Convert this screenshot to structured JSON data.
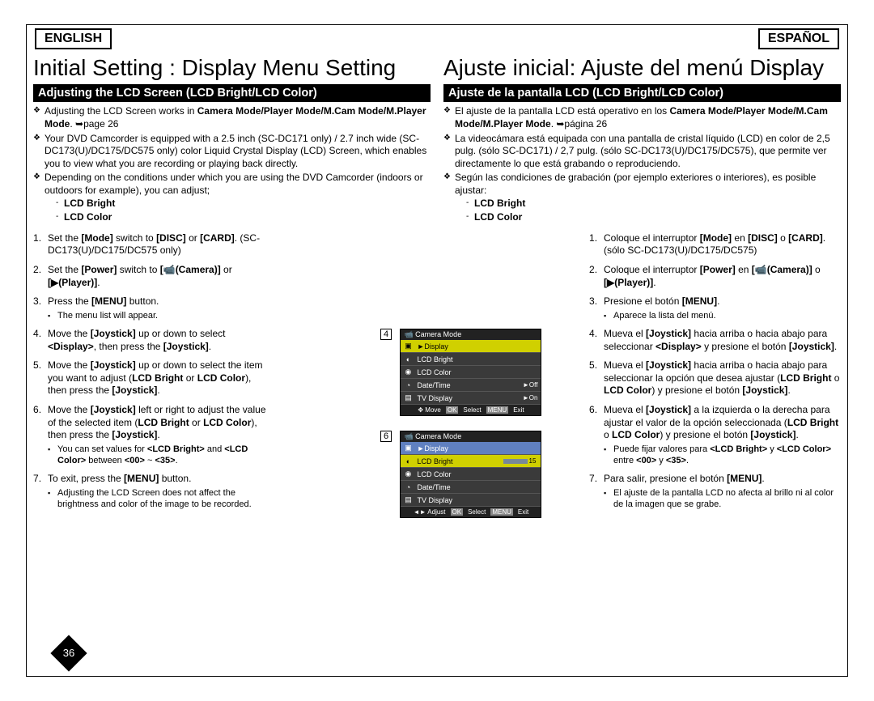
{
  "lang_left": "ENGLISH",
  "lang_right": "ESPAÑOL",
  "left": {
    "title": "Initial Setting : Display Menu Setting",
    "subhead": "Adjusting the LCD Screen (LCD Bright/LCD Color)",
    "b1a": "Adjusting the LCD Screen works in ",
    "b1b": "Camera Mode/Player Mode/M.Cam Mode/M.Player Mode",
    "b1c": ". ➥page 26",
    "b2": "Your DVD Camcorder is equipped with a 2.5 inch (SC-DC171 only) / 2.7 inch wide (SC-DC173(U)/DC175/DC575 only) color Liquid Crystal Display (LCD) Screen, which enables you to view what you are recording or playing back directly.",
    "b3": "Depending on the conditions under which you are using the DVD Camcorder (indoors or outdoors for example), you can adjust;",
    "sub1": "LCD Bright",
    "sub2": "LCD Color",
    "s1": "Set the <b>[Mode]</b> switch to <b>[DISC]</b> or <b>[CARD]</b>. (SC-DC173(U)/DC175/DC575 only)",
    "s2": "Set the <b>[Power]</b> switch to <b>[📹(Camera)]</b> or <b>[▶(Player)]</b>.",
    "s3": "Press the <b>[MENU]</b> button.",
    "s3a": "The menu list will appear.",
    "s4": "Move the <b>[Joystick]</b> up or down to select <b>&lt;Display&gt;</b>, then press the <b>[Joystick]</b>.",
    "s5": "Move the <b>[Joystick]</b> up or down to select the item you want to adjust (<b>LCD Bright</b> or <b>LCD Color</b>), then press the <b>[Joystick]</b>.",
    "s6": "Move the <b>[Joystick]</b> left or right to adjust the value of the selected item (<b>LCD Bright</b> or <b>LCD Color</b>), then press the <b>[Joystick]</b>.",
    "s6a": "You can set values for <b>&lt;LCD Bright&gt;</b> and <b>&lt;LCD Color&gt;</b> between <b>&lt;00&gt;</b> ~ <b>&lt;35&gt;</b>.",
    "s7": "To exit, press the <b>[MENU]</b> button.",
    "s7a": "Adjusting the LCD Screen does not affect the brightness and color of the image to be recorded."
  },
  "right": {
    "title": "Ajuste inicial: Ajuste del menú Display",
    "subhead": "Ajuste de la pantalla LCD (LCD Bright/LCD Color)",
    "b1a": "El ajuste de la pantalla LCD está operativo en los ",
    "b1b": "Camera Mode/Player Mode/M.Cam Mode/M.Player Mode",
    "b1c": ". ➥página 26",
    "b2": "La videocámara está equipada con una pantalla de cristal líquido (LCD) en color de 2,5 pulg. (sólo SC-DC171) / 2,7 pulg. (sólo SC-DC173(U)/DC175/DC575), que permite ver directamente lo que está grabando o reproduciendo.",
    "b3": "Según las condiciones de grabación (por ejemplo exteriores o interiores), es posible ajustar:",
    "sub1": "LCD Bright",
    "sub2": "LCD Color",
    "s1": "Coloque el interruptor <b>[Mode]</b> en <b>[DISC]</b> o <b>[CARD]</b>. (sólo SC-DC173(U)/DC175/DC575)",
    "s2": "Coloque el interruptor <b>[Power]</b> en <b>[📹(Camera)]</b> o <b>[▶(Player)]</b>.",
    "s3": "Presione el botón <b>[MENU]</b>.",
    "s3a": "Aparece la lista del menú.",
    "s4": "Mueva el <b>[Joystick]</b> hacia arriba o hacia abajo para seleccionar <b>&lt;Display&gt;</b> y presione el botón <b>[Joystick]</b>.",
    "s5": "Mueva el <b>[Joystick]</b> hacia arriba o hacia abajo para seleccionar la opción que desea ajustar (<b>LCD Bright</b> o <b>LCD Color</b>) y presione el botón <b>[Joystick]</b>.",
    "s6": "Mueva el <b>[Joystick]</b> a la izquierda o la derecha para ajustar el valor de la opción seleccionada (<b>LCD Bright</b> o <b>LCD Color</b>) y presione el botón <b>[Joystick]</b>.",
    "s6a": "Puede fijar valores para <b>&lt;LCD Bright&gt;</b> y <b>&lt;LCD Color&gt;</b> entre <b>&lt;00&gt;</b> y <b>&lt;35&gt;</b>.",
    "s7": "Para salir, presione el botón <b>[MENU]</b>.",
    "s7a": "El ajuste de la pantalla LCD no afecta al brillo ni al color de la imagen que se grabe."
  },
  "screens": {
    "n4": "4",
    "n6": "6",
    "head": "Camera Mode",
    "display": "►Display",
    "lcdbright": "LCD Bright",
    "lcdcolor": "LCD Color",
    "datetime": "Date/Time",
    "tvdisplay": "TV Display",
    "off": "►Off",
    "on": "►On",
    "val": "15",
    "foot_move": "Move",
    "foot_adjust": "Adjust",
    "foot_ok": "OK",
    "foot_select": "Select",
    "foot_menu": "MENU",
    "foot_exit": "Exit"
  },
  "pagenum": "36"
}
